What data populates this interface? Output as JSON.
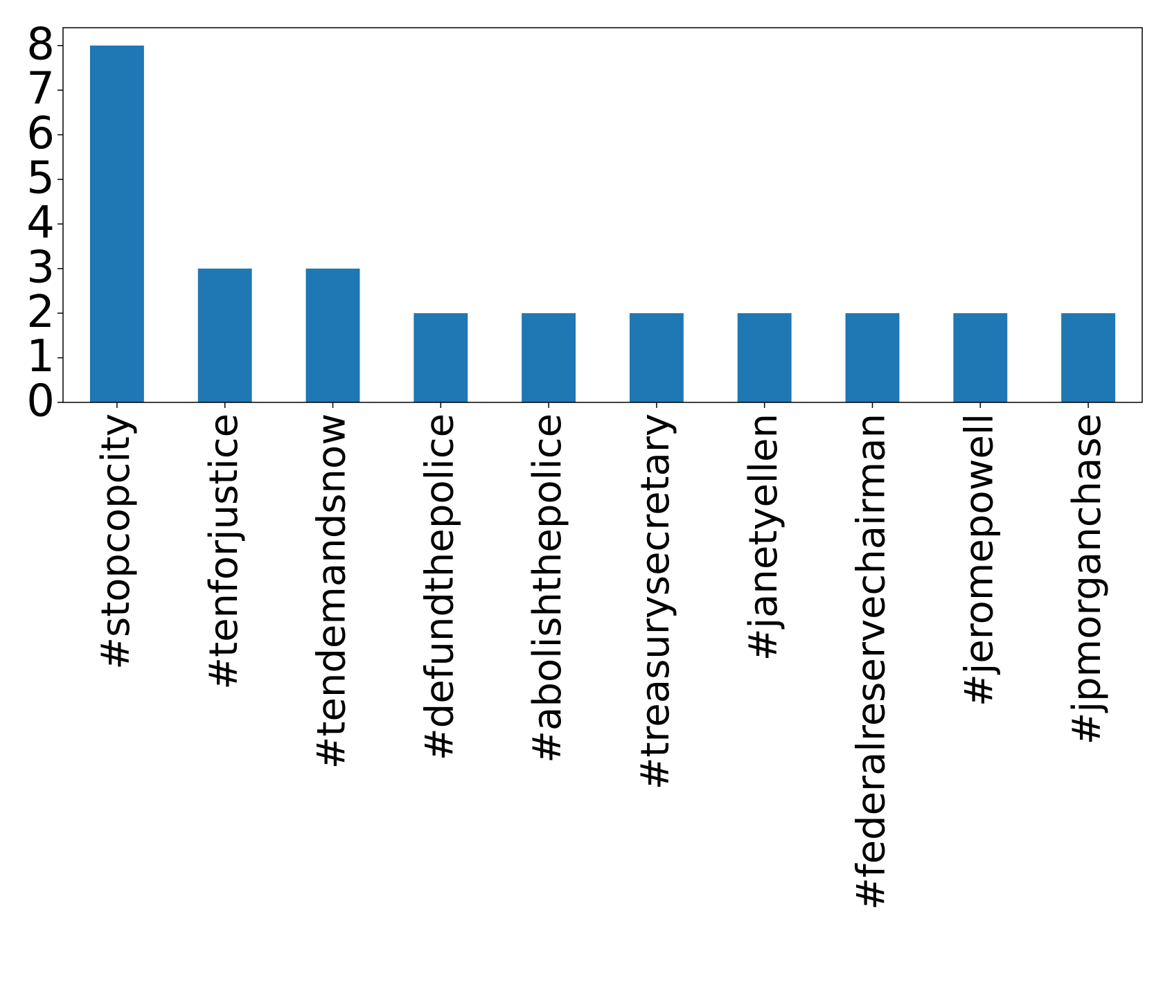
{
  "chart_data": {
    "type": "bar",
    "categories": [
      "#stopcopcity",
      "#tenforjustice",
      "#tendemandsnow",
      "#defundthepolice",
      "#abolishthepolice",
      "#treasurysecretary",
      "#janetyellen",
      "#federalreservechairman",
      "#jeromepowell",
      "#jpmorganchase"
    ],
    "values": [
      8,
      3,
      3,
      2,
      2,
      2,
      2,
      2,
      2,
      2
    ],
    "color": "#1f77b4",
    "ylim": [
      0,
      8.4
    ],
    "yticks": [
      0,
      1,
      2,
      3,
      4,
      5,
      6,
      7,
      8
    ],
    "grid": false
  }
}
